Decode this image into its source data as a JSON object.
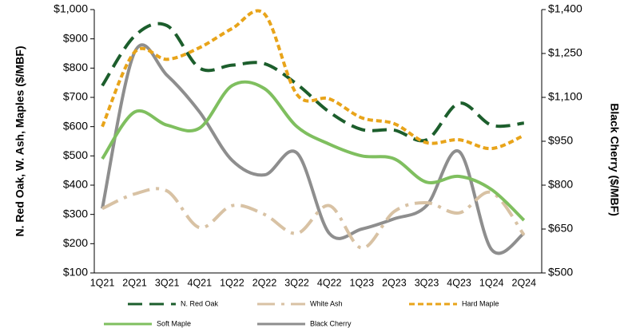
{
  "chart_data": {
    "type": "line",
    "ylabel": "N. Red Oak, W. Ash, Maples ($/MBF)",
    "y2label": "Black Cherry ($/MBF)",
    "categories": [
      "1Q21",
      "2Q21",
      "3Q21",
      "4Q21",
      "1Q22",
      "2Q22",
      "3Q22",
      "4Q22",
      "1Q23",
      "2Q23",
      "3Q23",
      "4Q23",
      "1Q24",
      "2Q24"
    ],
    "ylim": [
      100,
      1000
    ],
    "yticks": [
      {
        "value": 100,
        "label": "$100"
      },
      {
        "value": 200,
        "label": "$200"
      },
      {
        "value": 300,
        "label": "$300"
      },
      {
        "value": 400,
        "label": "$400"
      },
      {
        "value": 500,
        "label": "$500"
      },
      {
        "value": 600,
        "label": "$600"
      },
      {
        "value": 700,
        "label": "$700"
      },
      {
        "value": 800,
        "label": "$800"
      },
      {
        "value": 900,
        "label": "$900"
      },
      {
        "value": 1000,
        "label": "$1,000"
      }
    ],
    "y2lim": [
      500,
      1400
    ],
    "y2ticks": [
      {
        "value": 500,
        "label": "$500"
      },
      {
        "value": 650,
        "label": "$650"
      },
      {
        "value": 800,
        "label": "$800"
      },
      {
        "value": 950,
        "label": "$950"
      },
      {
        "value": 1100,
        "label": "$1,100"
      },
      {
        "value": 1250,
        "label": "$1,250"
      },
      {
        "value": 1400,
        "label": "$1,400"
      }
    ],
    "series": [
      {
        "name": "N. Red Oak",
        "color": "#1c5e2c",
        "dash": "18 9",
        "values": [
          740,
          910,
          945,
          800,
          810,
          815,
          745,
          650,
          590,
          588,
          555,
          680,
          605,
          612
        ]
      },
      {
        "name": "White Ash",
        "color": "#d8c2a4",
        "dash": "22 8 4 8",
        "values": [
          320,
          370,
          380,
          255,
          330,
          300,
          235,
          330,
          185,
          310,
          340,
          305,
          375,
          230
        ]
      },
      {
        "name": "Hard Maple",
        "color": "#e8a41a",
        "dash": "7 4",
        "values": [
          600,
          855,
          830,
          870,
          935,
          985,
          710,
          695,
          630,
          610,
          545,
          555,
          525,
          570
        ]
      },
      {
        "name": "Soft Maple",
        "color": "#7fbf5f",
        "dash": "",
        "values": [
          490,
          650,
          605,
          595,
          740,
          730,
          600,
          540,
          500,
          490,
          410,
          430,
          385,
          280
        ]
      },
      {
        "name": "Black Cherry",
        "color": "#8e8e8e",
        "dash": "",
        "axis": "y2",
        "values": [
          720,
          1255,
          1175,
          1050,
          885,
          835,
          910,
          635,
          650,
          685,
          730,
          915,
          580,
          635
        ]
      }
    ]
  }
}
